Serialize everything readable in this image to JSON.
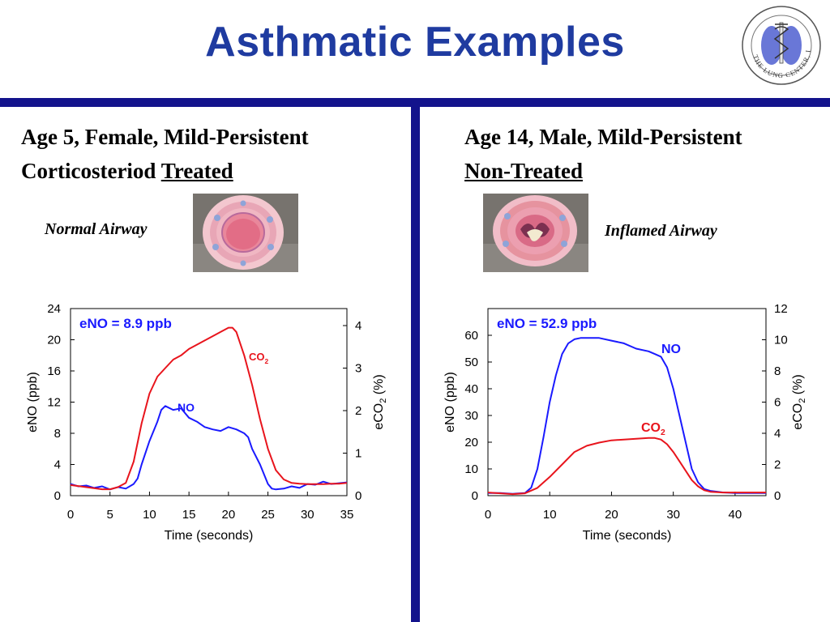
{
  "slide": {
    "title": "Asthmatic Examples"
  },
  "logo": {
    "ring_text": "THE LUNG CENTER, INC."
  },
  "left": {
    "heading_line1": "Age 5, Female, Mild-Persistent",
    "heading_line2a": "Corticosteriod ",
    "heading_line2b": "Treated",
    "airway_label": "Normal Airway"
  },
  "right": {
    "heading_line1": "Age 14, Male, Mild-Persistent",
    "heading_line2": "Non-Treated",
    "airway_label": "Inflamed Airway"
  },
  "colors": {
    "title": "#1f3ba0",
    "bars": "#13138c",
    "no_series": "#1a1aff",
    "co2_series": "#e8141c",
    "annotation": "#1a1aff"
  },
  "chart_data": [
    {
      "type": "line",
      "annotation": "eNO = 8.9 ppb",
      "xlabel": "Time (seconds)",
      "ylabel": "eNO (ppb)",
      "y2label_main": "eCO",
      "y2label_sub": "2",
      "y2label_end": " (%)",
      "xlim": [
        0,
        35
      ],
      "ylim": [
        0,
        24
      ],
      "y2lim": [
        0,
        4.4
      ],
      "x_ticks": [
        0,
        5,
        10,
        15,
        20,
        25,
        30,
        35
      ],
      "y_ticks": [
        0,
        4,
        8,
        12,
        16,
        20,
        24
      ],
      "y2_ticks": [
        0,
        1,
        2,
        3,
        4
      ],
      "series": [
        {
          "name": "NO",
          "axis": "y",
          "x": [
            0,
            1,
            2,
            3,
            4,
            5,
            6,
            7,
            8,
            8.5,
            9,
            10,
            11,
            11.5,
            12,
            13,
            14,
            15,
            16,
            17,
            18,
            19,
            20,
            21,
            22,
            22.5,
            23,
            24,
            25,
            25.5,
            26,
            27,
            28,
            29,
            30,
            31,
            32,
            33,
            34,
            35
          ],
          "y": [
            1.5,
            1.2,
            1.3,
            1.0,
            1.2,
            0.8,
            1.1,
            0.9,
            1.5,
            2.2,
            4,
            7,
            9.5,
            11,
            11.5,
            11,
            11.2,
            10,
            9.5,
            8.8,
            8.5,
            8.3,
            8.8,
            8.5,
            8,
            7.5,
            6,
            4,
            1.5,
            0.9,
            0.8,
            0.9,
            1.2,
            1.0,
            1.5,
            1.4,
            1.8,
            1.5,
            1.6,
            1.7
          ]
        },
        {
          "name": "CO2",
          "axis": "y2",
          "x": [
            0,
            2,
            4,
            5,
            6,
            7,
            8,
            9,
            10,
            11,
            12,
            13,
            14,
            15,
            16,
            17,
            18,
            19,
            20,
            20.5,
            21,
            22,
            23,
            24,
            25,
            26,
            27,
            28,
            29,
            30,
            31,
            32,
            33,
            34,
            35
          ],
          "y": [
            0.25,
            0.2,
            0.15,
            0.15,
            0.2,
            0.3,
            0.8,
            1.7,
            2.4,
            2.8,
            3.0,
            3.2,
            3.3,
            3.45,
            3.55,
            3.65,
            3.75,
            3.85,
            3.95,
            3.95,
            3.85,
            3.3,
            2.6,
            1.8,
            1.1,
            0.6,
            0.38,
            0.3,
            0.28,
            0.27,
            0.27,
            0.27,
            0.28,
            0.28,
            0.3
          ]
        }
      ]
    },
    {
      "type": "line",
      "annotation": "eNO = 52.9 ppb",
      "xlabel": "Time (seconds)",
      "ylabel": "eNO (ppb)",
      "y2label_main": "eCO",
      "y2label_sub": "2",
      "y2label_end": " (%)",
      "xlim": [
        0,
        45
      ],
      "ylim": [
        0,
        70
      ],
      "y2lim": [
        0,
        12
      ],
      "x_ticks": [
        0,
        10,
        20,
        30,
        40
      ],
      "y_ticks": [
        0,
        10,
        20,
        30,
        40,
        50,
        60
      ],
      "y2_ticks": [
        0,
        2,
        4,
        6,
        8,
        10,
        12
      ],
      "series": [
        {
          "name": "NO",
          "axis": "y",
          "x": [
            0,
            2,
            4,
            6,
            7,
            8,
            9,
            10,
            11,
            12,
            13,
            14,
            15,
            16,
            18,
            20,
            22,
            24,
            26,
            27,
            28,
            29,
            30,
            31,
            32,
            33,
            34,
            35,
            36,
            38,
            40,
            42,
            45
          ],
          "y": [
            1,
            1,
            0.7,
            1,
            3,
            10,
            22,
            35,
            45,
            53,
            57,
            58.5,
            59,
            59,
            59,
            58,
            57,
            55,
            54,
            53,
            52,
            48,
            40,
            30,
            20,
            10,
            5,
            2.5,
            1.8,
            1.2,
            1.0,
            1.0,
            1.0
          ]
        },
        {
          "name": "CO2",
          "axis": "y2",
          "x": [
            0,
            4,
            6,
            8,
            10,
            12,
            14,
            16,
            18,
            20,
            22,
            24,
            26,
            27,
            28,
            29,
            30,
            31,
            32,
            33,
            34,
            35,
            36,
            38,
            40,
            42,
            45
          ],
          "y": [
            0.2,
            0.1,
            0.15,
            0.5,
            1.2,
            2.0,
            2.8,
            3.2,
            3.4,
            3.55,
            3.6,
            3.65,
            3.7,
            3.7,
            3.6,
            3.3,
            2.8,
            2.2,
            1.6,
            1.0,
            0.6,
            0.35,
            0.25,
            0.2,
            0.2,
            0.2,
            0.2
          ]
        }
      ],
      "series_labels": {
        "NO": "NO",
        "CO2": "CO"
      }
    }
  ],
  "labels": {
    "left_no": "NO",
    "left_co2": "CO",
    "left_co2_sub": "2",
    "right_no": "NO",
    "right_co2": "CO",
    "right_co2_sub": "2"
  }
}
